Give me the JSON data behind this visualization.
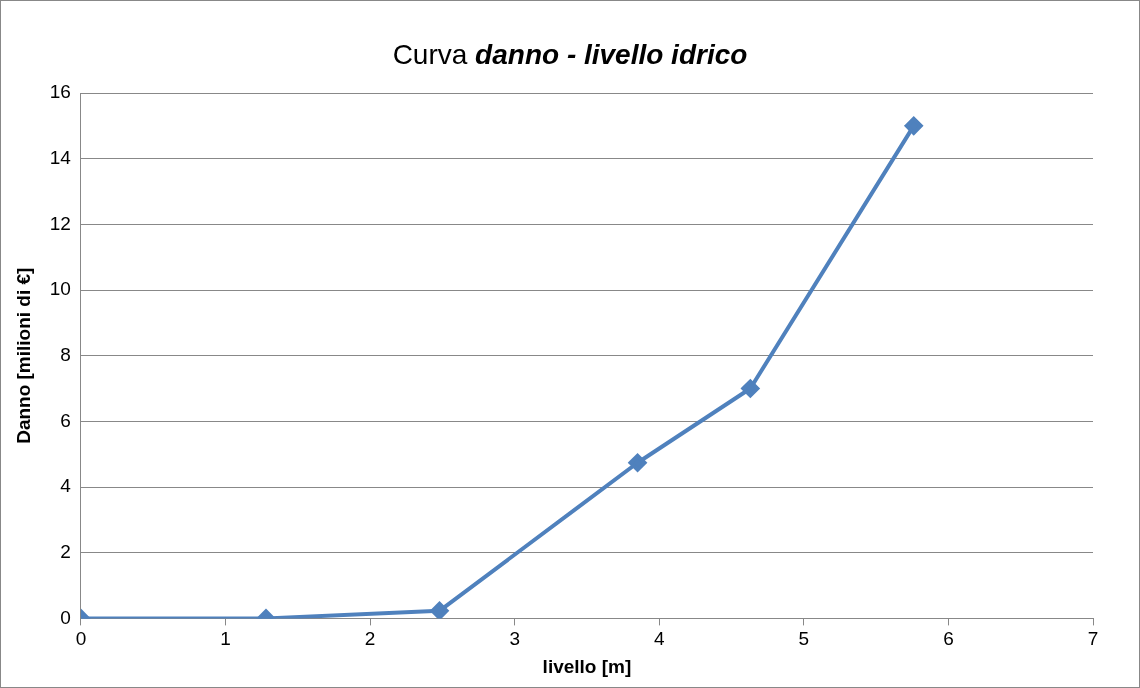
{
  "chart_data": {
    "type": "line",
    "title": "Curva danno - livello idrico",
    "xlabel": "livello [m]",
    "ylabel": "Danno [milioni di €]",
    "x": [
      0,
      1.28,
      2.48,
      3.85,
      4.63,
      5.76
    ],
    "series": [
      {
        "color": "#4f81bd",
        "values": [
          0,
          0,
          0.23,
          4.74,
          7.0,
          15.0
        ]
      }
    ],
    "xlim": [
      0,
      7
    ],
    "xticks": [
      0,
      1,
      2,
      3,
      4,
      5,
      6,
      7
    ],
    "ylim": [
      0,
      16
    ],
    "yticks": [
      0,
      2,
      4,
      6,
      8,
      10,
      12,
      14,
      16
    ],
    "grid": "y",
    "legend": false,
    "marker": "diamond",
    "line_style": "solid"
  }
}
